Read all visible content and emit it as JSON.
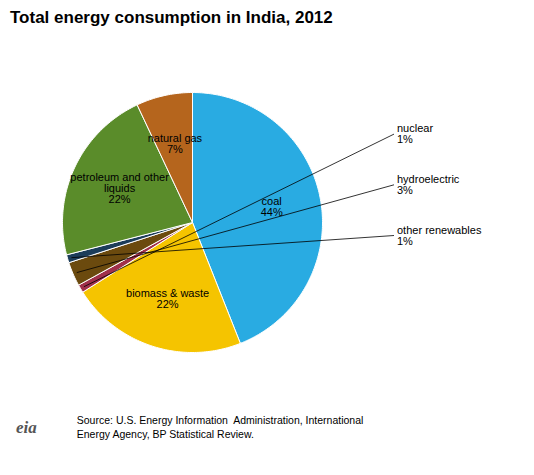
{
  "chart_data": {
    "type": "pie",
    "title": "Total energy consumption in India, 2012",
    "categories": [
      "coal",
      "biomass & waste",
      "nuclear",
      "hydroelectric",
      "other renewables",
      "petroleum and other\nliquids",
      "natural gas"
    ],
    "values": [
      44,
      22,
      1,
      3,
      1,
      22,
      7
    ],
    "value_labels": [
      "44%",
      "22%",
      "1%",
      "3%",
      "1%",
      "22%",
      "7%"
    ],
    "colors": [
      "#29ABE2",
      "#F5C400",
      "#A0304A",
      "#6B4A0E",
      "#1C3D5A",
      "#5A8C2A",
      "#B5651D"
    ],
    "data_labels": true,
    "annotations": [
      "eia",
      "Source: U.S. Energy Information  Administration, International\nEnergy Agency, BP Statistical Review."
    ]
  }
}
